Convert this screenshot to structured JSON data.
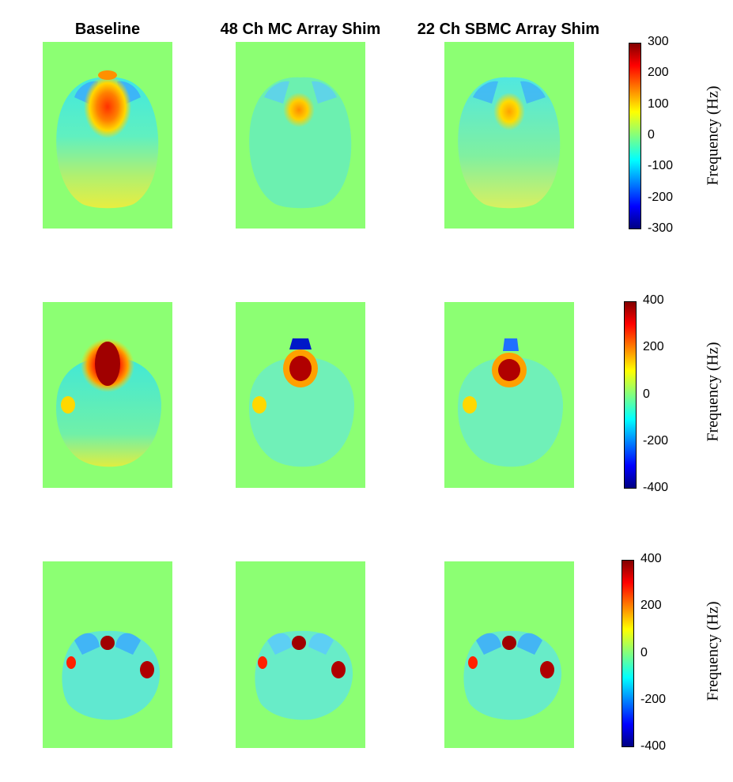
{
  "chart_data": {
    "type": "heatmap",
    "columns": [
      "Baseline",
      "48 Ch MC Array Shim",
      "22 Ch SBMC Array Shim"
    ],
    "colormap": "jet",
    "background_color": "#8cff73",
    "rows": [
      {
        "colorbar": {
          "label": "Frequency (Hz)",
          "range": [
            -300,
            300
          ],
          "ticks": [
            "300",
            "200",
            "100",
            "0",
            "-100",
            "-200",
            "-300"
          ]
        }
      },
      {
        "colorbar": {
          "label": "Frequency (Hz)",
          "range": [
            -400,
            400
          ],
          "ticks": [
            "400",
            "200",
            "0",
            "-200",
            "-400"
          ]
        }
      },
      {
        "colorbar": {
          "label": "Frequency (Hz)",
          "range": [
            -400,
            400
          ],
          "ticks": [
            "400",
            "200",
            "0",
            "-200",
            "-400"
          ]
        }
      }
    ]
  }
}
